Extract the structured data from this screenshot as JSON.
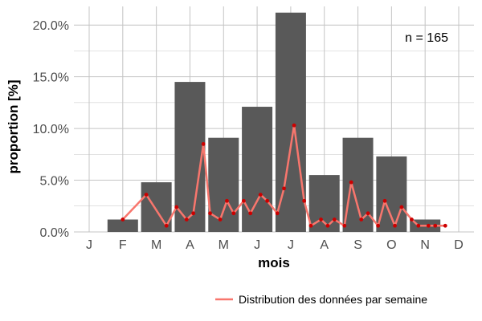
{
  "chart_data": {
    "type": "bar",
    "categories": [
      "J",
      "F",
      "M",
      "A",
      "M",
      "J",
      "J",
      "A",
      "S",
      "O",
      "N",
      "D"
    ],
    "values": [
      0,
      1.2,
      4.8,
      14.5,
      9.1,
      12.1,
      21.2,
      5.5,
      9.1,
      7.3,
      1.2,
      0
    ],
    "xlabel": "mois",
    "ylabel": "proportion [%]",
    "ylim": [
      0,
      21.8
    ],
    "yticks": [
      0,
      5,
      10,
      15,
      20
    ],
    "ytick_labels": [
      "0.0%",
      "5.0%",
      "10.0%",
      "15.0%",
      "20.0%"
    ],
    "annotation": "n = 165",
    "legend_position": "bottom-right",
    "grid": true,
    "series": [
      {
        "name": "Distribution des données par semaine",
        "type": "line",
        "color": "#f8766d",
        "x": [
          1.0,
          1.7,
          2.3,
          2.6,
          2.9,
          3.1,
          3.4,
          3.6,
          3.9,
          4.1,
          4.3,
          4.6,
          4.8,
          5.1,
          5.3,
          5.6,
          5.8,
          6.1,
          6.4,
          6.6,
          6.9,
          7.1,
          7.3,
          7.6,
          7.8,
          8.1,
          8.3,
          8.6,
          8.8,
          9.1,
          9.3,
          9.6,
          9.8,
          10.1,
          10.3,
          10.6
        ],
        "y": [
          1.2,
          3.6,
          0.6,
          2.4,
          1.2,
          1.8,
          8.5,
          1.8,
          1.2,
          3.0,
          1.8,
          3.0,
          1.8,
          3.6,
          3.0,
          1.8,
          4.2,
          10.3,
          3.0,
          0.6,
          1.2,
          0.6,
          1.2,
          0.6,
          4.8,
          1.2,
          1.8,
          0.6,
          3.0,
          0.6,
          2.4,
          1.2,
          0.6,
          0.6,
          0.6,
          0.6
        ]
      }
    ]
  },
  "colors": {
    "bar": "#595959",
    "line": "#f8766d",
    "point": "#cc0000",
    "grid": "#c4c4c4",
    "axis_text": "#4d4d4d"
  }
}
